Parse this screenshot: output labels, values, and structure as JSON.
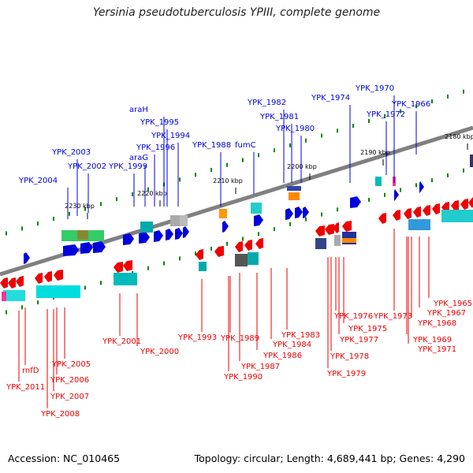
{
  "title": "Yersinia pseudotuberculosis YPIII, complete genome",
  "footer": {
    "accession": "Accession: NC_010465",
    "summary": "Topology: circular; Length: 4,689,441 bp; Genes: 4,290"
  },
  "colors": {
    "forward": "#0000dd",
    "reverse": "#ee0000",
    "backbone": "#808080",
    "minor_tick": "#008800"
  },
  "ticks": [
    "2180 kbp",
    "2190 kbp",
    "2200 kbp",
    "2210 kbp",
    "2220 kbp",
    "2230 kbp"
  ],
  "forward_labels": [
    "YPK_1970",
    "YPK_1974",
    "YPK_1966",
    "YPK_1982",
    "YPK_1972",
    "YPK_1981",
    "YPK_1980",
    "araH",
    "YPK_1995",
    "YPK_1994",
    "YPK_1996",
    "YPK_1988",
    "fumC",
    "araG",
    "YPK_2003",
    "YPK_1999",
    "YPK_2002",
    "YPK_2004"
  ],
  "reverse_labels": [
    "YPK_1965",
    "YPK_1967",
    "YPK_1973",
    "YPK_1968",
    "YPK_1976",
    "YPK_1975",
    "YPK_1969",
    "YPK_1983",
    "YPK_1993",
    "YPK_1977",
    "YPK_1989",
    "YPK_1971",
    "YPK_1984",
    "YPK_2001",
    "YPK_1978",
    "YPK_2000",
    "YPK_1986",
    "YPK_1987",
    "YPK_1979",
    "YPK_2005",
    "rnfD",
    "YPK_1990",
    "YPK_2006",
    "YPK_2011",
    "YPK_2007",
    "YPK_2008"
  ]
}
